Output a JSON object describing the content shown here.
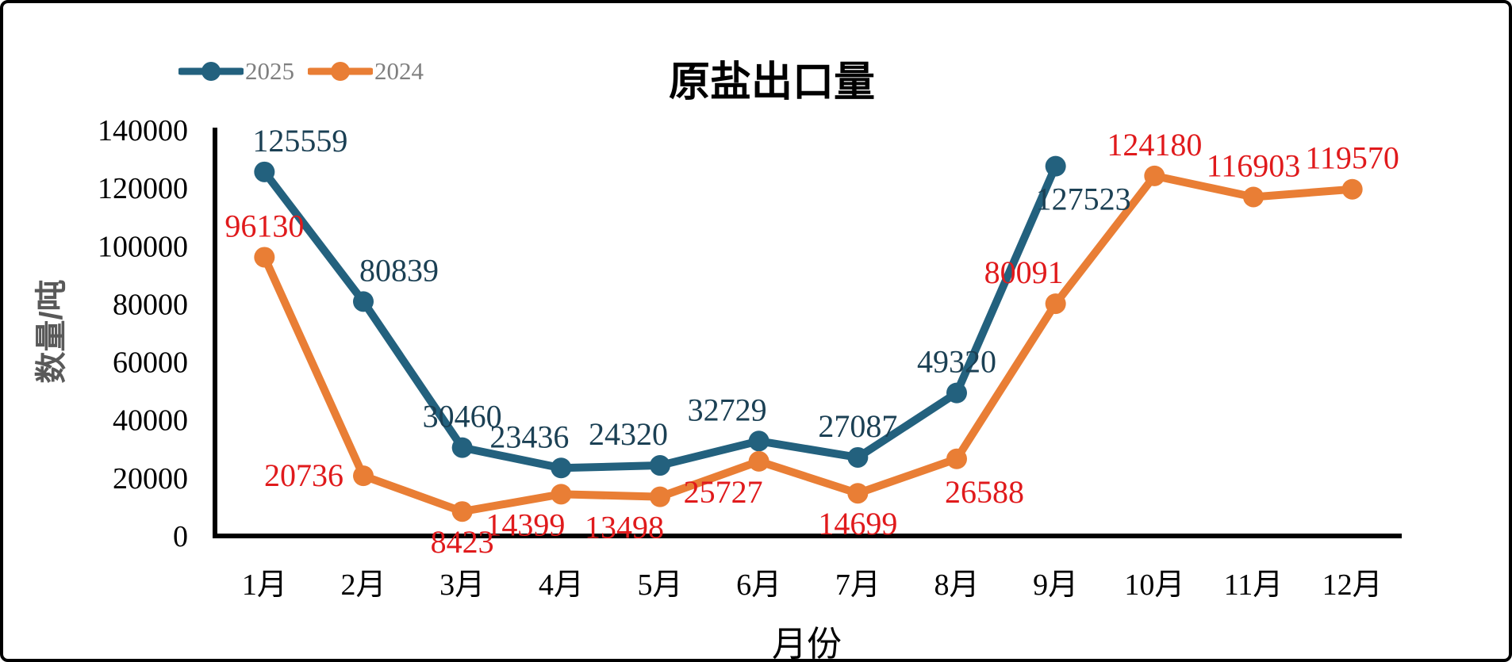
{
  "chart_data": {
    "type": "line",
    "title": "原盐出口量",
    "xlabel": "月份",
    "ylabel": "数量/吨",
    "categories": [
      "1月",
      "2月",
      "3月",
      "4月",
      "5月",
      "6月",
      "7月",
      "8月",
      "9月",
      "10月",
      "11月",
      "12月"
    ],
    "series": [
      {
        "name": "2025",
        "color": "#23617e",
        "label_color": "#1b4054",
        "values": [
          125559,
          80839,
          30460,
          23436,
          24320,
          32729,
          27087,
          49320,
          127523,
          null,
          null,
          null
        ],
        "label_positions": [
          "above-right",
          "above-right",
          "above",
          "above-left",
          "above-left",
          "above-left",
          "above",
          "above",
          "below-right",
          null,
          null,
          null
        ]
      },
      {
        "name": "2024",
        "color": "#e97e35",
        "label_color": "#e01a1c",
        "values": [
          96130,
          20736,
          8423,
          14399,
          13498,
          25727,
          14699,
          26588,
          80091,
          124180,
          116903,
          119570
        ],
        "label_positions": [
          "above",
          "left",
          "below",
          "below-left",
          "below-left",
          "below-left",
          "below",
          "below-right",
          "above-left",
          "above",
          "above",
          "above"
        ]
      }
    ],
    "ylim": [
      0,
      140000
    ],
    "ytick_interval": 20000,
    "yticks": [
      0,
      20000,
      40000,
      60000,
      80000,
      100000,
      120000,
      140000
    ],
    "grid": false,
    "legend_position": "top-left",
    "axis_color": "#000000",
    "tick_label_color": "#000000",
    "legend_text_color": "#7f7f7f"
  }
}
